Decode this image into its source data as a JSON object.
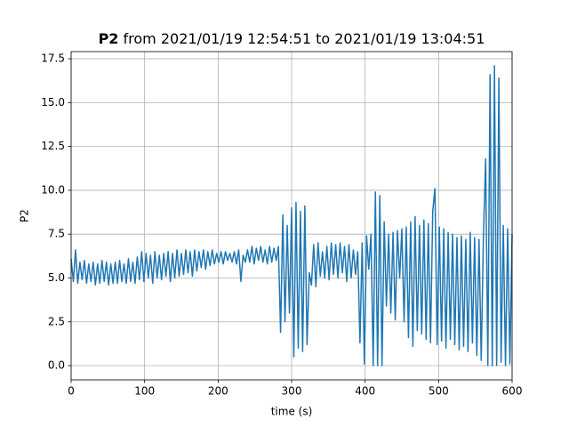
{
  "chart_data": {
    "type": "line",
    "title_parts": [
      "P2",
      "from 2021/01/19 12:54:51 to 2021/01/19 13:04:51"
    ],
    "xlabel": "time (s)",
    "ylabel": "P2",
    "xlim": [
      0,
      600
    ],
    "ylim": [
      -0.81,
      17.91
    ],
    "xticks": [
      0,
      100,
      200,
      300,
      400,
      500,
      600
    ],
    "yticks": [
      {
        "value": 0,
        "label": "0.0"
      },
      {
        "value": 2.5,
        "label": "2.5"
      },
      {
        "value": 5,
        "label": "5.0"
      },
      {
        "value": 7.5,
        "label": "7.5"
      },
      {
        "value": 10,
        "label": "10.0"
      },
      {
        "value": 12.5,
        "label": "12.5"
      },
      {
        "value": 15,
        "label": "15.0"
      },
      {
        "value": 17.5,
        "label": "17.5"
      }
    ],
    "grid": true,
    "x": [
      0,
      3,
      6,
      9,
      12,
      15,
      18,
      21,
      24,
      27,
      30,
      33,
      36,
      39,
      42,
      45,
      48,
      51,
      54,
      57,
      60,
      63,
      66,
      69,
      72,
      75,
      78,
      81,
      84,
      87,
      90,
      93,
      96,
      99,
      102,
      105,
      108,
      111,
      114,
      117,
      120,
      123,
      126,
      129,
      132,
      135,
      138,
      141,
      144,
      147,
      150,
      153,
      156,
      159,
      162,
      165,
      168,
      171,
      174,
      177,
      180,
      183,
      186,
      189,
      192,
      195,
      198,
      201,
      204,
      207,
      210,
      213,
      216,
      219,
      222,
      225,
      228,
      231,
      234,
      237,
      240,
      243,
      246,
      249,
      252,
      255,
      258,
      261,
      264,
      267,
      270,
      273,
      276,
      279,
      282,
      285,
      288,
      291,
      294,
      297,
      300,
      303,
      306,
      309,
      312,
      315,
      318,
      321,
      324,
      327,
      330,
      333,
      336,
      339,
      342,
      345,
      348,
      351,
      354,
      357,
      360,
      363,
      366,
      369,
      372,
      375,
      378,
      381,
      384,
      387,
      390,
      393,
      396,
      399,
      402,
      405,
      408,
      411,
      414,
      417,
      420,
      423,
      426,
      429,
      432,
      435,
      438,
      441,
      444,
      447,
      450,
      453,
      456,
      459,
      462,
      465,
      468,
      471,
      474,
      477,
      480,
      483,
      486,
      489,
      492,
      495,
      498,
      501,
      504,
      507,
      510,
      513,
      516,
      519,
      522,
      525,
      528,
      531,
      534,
      537,
      540,
      543,
      546,
      549,
      552,
      555,
      558,
      561,
      564,
      567,
      570,
      573,
      576,
      579,
      582,
      585,
      588,
      591,
      594,
      597,
      600
    ],
    "series": [
      {
        "name": "P2",
        "color": "#1f77b4",
        "values": [
          6.1,
          4.8,
          6.6,
          4.7,
          5.9,
          4.9,
          6.0,
          4.7,
          5.8,
          4.8,
          5.9,
          4.6,
          5.8,
          4.7,
          6.0,
          4.8,
          5.9,
          4.6,
          5.8,
          4.7,
          5.9,
          4.7,
          6.0,
          4.8,
          5.8,
          4.7,
          6.1,
          4.8,
          5.9,
          4.7,
          6.2,
          4.9,
          6.5,
          4.8,
          6.4,
          5.0,
          6.3,
          4.7,
          6.5,
          5.0,
          6.3,
          4.9,
          6.4,
          5.1,
          6.5,
          4.8,
          6.4,
          5.0,
          6.6,
          5.1,
          6.4,
          5.2,
          6.6,
          5.3,
          6.5,
          5.1,
          6.6,
          5.4,
          6.5,
          5.6,
          6.6,
          5.5,
          6.5,
          5.7,
          6.6,
          5.8,
          6.4,
          5.9,
          6.5,
          5.8,
          6.5,
          6.0,
          6.4,
          5.9,
          6.5,
          5.8,
          6.6,
          4.8,
          6.3,
          5.9,
          6.6,
          5.9,
          6.8,
          5.8,
          6.7,
          6.0,
          6.8,
          5.9,
          6.6,
          5.8,
          6.8,
          5.9,
          6.7,
          6.0,
          6.8,
          1.9,
          8.6,
          2.5,
          8.0,
          3.0,
          9.0,
          0.5,
          9.3,
          1.0,
          8.8,
          0.8,
          9.1,
          1.2,
          5.3,
          4.6,
          6.9,
          4.5,
          7.0,
          5.1,
          6.5,
          5.0,
          6.8,
          4.9,
          7.0,
          5.2,
          6.9,
          5.0,
          7.0,
          5.3,
          6.8,
          4.8,
          6.9,
          5.0,
          6.6,
          5.2,
          6.5,
          1.3,
          7.0,
          0.1,
          7.4,
          5.5,
          7.5,
          0.0,
          9.9,
          0.0,
          9.7,
          0.0,
          8.2,
          3.4,
          7.5,
          3.0,
          7.6,
          2.6,
          7.7,
          5.0,
          7.8,
          2.5,
          7.9,
          1.6,
          8.2,
          1.1,
          8.5,
          2.0,
          8.0,
          1.8,
          8.3,
          1.5,
          8.1,
          1.3,
          8.8,
          10.1,
          1.2,
          7.9,
          1.4,
          7.8,
          1.0,
          7.6,
          1.5,
          7.5,
          1.2,
          7.3,
          0.9,
          7.4,
          1.1,
          7.2,
          0.8,
          7.6,
          1.3,
          7.3,
          0.6,
          7.2,
          0.3,
          7.4,
          11.8,
          0.0,
          16.6,
          0.0,
          17.1,
          0.0,
          16.4,
          0.2,
          8.0,
          0.0,
          7.8,
          0.1,
          7.5
        ]
      }
    ]
  }
}
